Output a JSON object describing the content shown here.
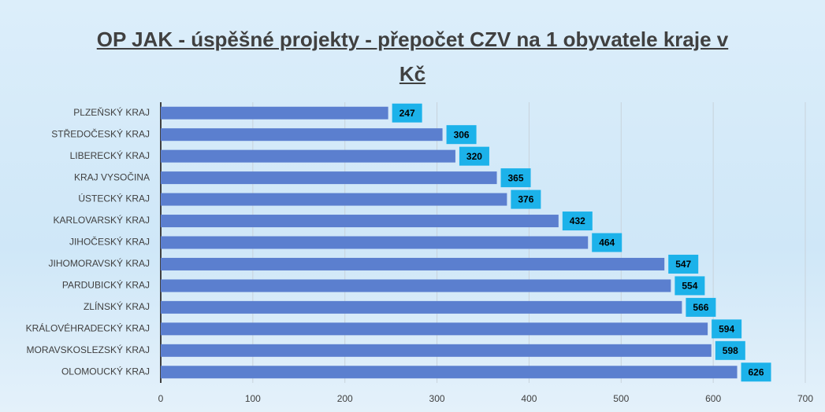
{
  "chart_data": {
    "type": "bar",
    "orientation": "horizontal",
    "title": "OP JAK - úspěšné projekty - přepočet CZV na 1 obyvatele kraje v Kč",
    "categories": [
      "PLZEŇSKÝ KRAJ",
      "STŘEDOČESKÝ KRAJ",
      "LIBERECKÝ KRAJ",
      "KRAJ VYSOČINA",
      "ÚSTECKÝ KRAJ",
      "KARLOVARSKÝ KRAJ",
      "JIHOČESKÝ KRAJ",
      "JIHOMORAVSKÝ KRAJ",
      "PARDUBICKÝ KRAJ",
      "ZLÍNSKÝ KRAJ",
      "KRÁLOVÉHRADECKÝ KRAJ",
      "MORAVSKOSLEZSKÝ KRAJ",
      "OLOMOUCKÝ KRAJ"
    ],
    "values": [
      247,
      306,
      320,
      365,
      376,
      432,
      464,
      547,
      554,
      566,
      594,
      598,
      626
    ],
    "color": "#5b7fcf",
    "label_color": "#1cb2ea",
    "xlim": [
      0,
      700
    ],
    "xticks": [
      0,
      100,
      200,
      300,
      400,
      500,
      600,
      700
    ],
    "grid": true
  }
}
